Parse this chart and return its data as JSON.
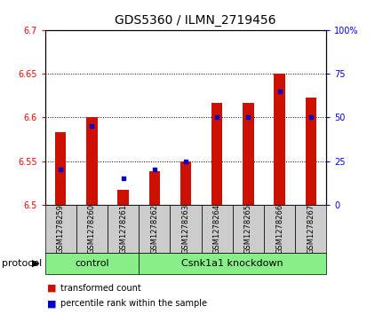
{
  "title": "GDS5360 / ILMN_2719456",
  "samples": [
    "GSM1278259",
    "GSM1278260",
    "GSM1278261",
    "GSM1278262",
    "GSM1278263",
    "GSM1278264",
    "GSM1278265",
    "GSM1278266",
    "GSM1278267"
  ],
  "bar_values": [
    6.583,
    6.6,
    6.517,
    6.538,
    6.55,
    6.617,
    6.617,
    6.65,
    6.623
  ],
  "percentile_values": [
    20,
    45,
    15,
    20,
    25,
    50,
    50,
    65,
    50
  ],
  "ylim_left": [
    6.5,
    6.7
  ],
  "ylim_right": [
    0,
    100
  ],
  "yticks_left": [
    6.5,
    6.55,
    6.6,
    6.65,
    6.7
  ],
  "yticks_right": [
    0,
    25,
    50,
    75,
    100
  ],
  "bar_color": "#cc1100",
  "dot_color": "#0000cc",
  "bar_width": 0.35,
  "protocol_groups": [
    {
      "label": "control",
      "start": 0,
      "end": 3
    },
    {
      "label": "Csnk1a1 knockdown",
      "start": 3,
      "end": 9
    }
  ],
  "protocol_label": "protocol",
  "legend_items": [
    {
      "color": "#cc1100",
      "label": "transformed count"
    },
    {
      "color": "#0000cc",
      "label": "percentile rank within the sample"
    }
  ],
  "plot_bg_color": "#ffffff",
  "group_bg_color": "#cccccc",
  "protocol_bg_color": "#88ee88",
  "title_fontsize": 10,
  "tick_fontsize": 7,
  "label_fontsize": 6,
  "legend_fontsize": 7,
  "protocol_fontsize": 8
}
